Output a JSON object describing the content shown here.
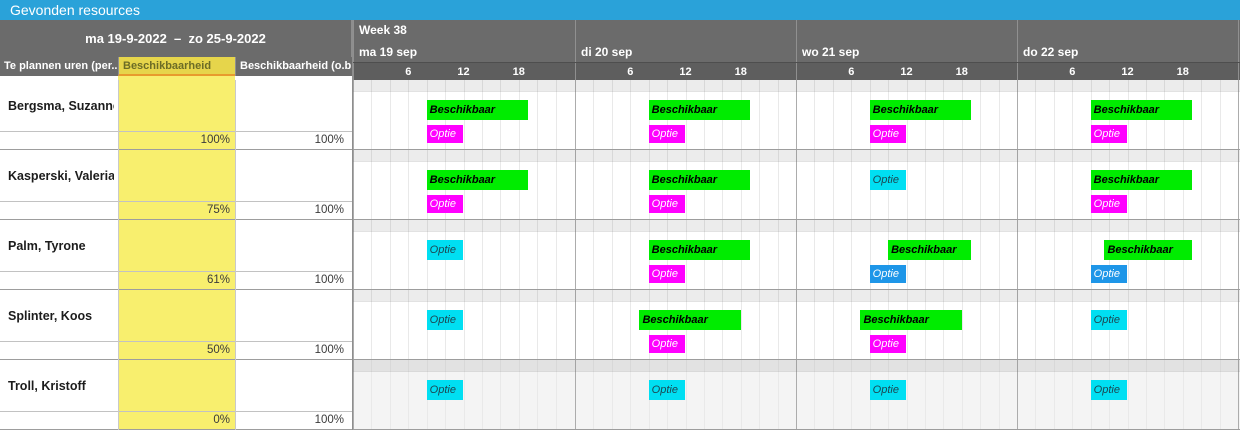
{
  "title": "Gevonden resources",
  "left_panel": {
    "date_range": "ma 19-9-2022  –  zo 25-9-2022",
    "columns": [
      {
        "label": "Te plannen uren (per...",
        "highlight": false
      },
      {
        "label": "Beschikbaarheid",
        "highlight": true,
        "sort_icon": "triangle-down"
      },
      {
        "label": "Beschikbaarheid (o.b...",
        "highlight": false
      }
    ]
  },
  "timeline": {
    "week_label": "Week 38",
    "days": [
      "ma 19 sep",
      "di 20 sep",
      "wo 21 sep",
      "do 22 sep"
    ],
    "hour_ticks": [
      6,
      12,
      18
    ]
  },
  "colors": {
    "titlebar": "#2AA2D9",
    "header_bg": "#6B6B6B",
    "highlight_column": "#F8EF6E",
    "bar_green": "#00EC00",
    "bar_magenta": "#FF00FF",
    "bar_cyan": "#00DFF2",
    "bar_blue": "#1E96E8"
  },
  "resources": [
    {
      "name": "Bergsma, Suzanne",
      "beschikbaarheid": "100%",
      "beschikbaarheid_obv": "100%",
      "row_shaded": false,
      "bars": [
        {
          "day": 0,
          "slot": "top",
          "label": "Beschikbaar",
          "color": "green",
          "from": 8,
          "to": 19
        },
        {
          "day": 0,
          "slot": "bottom",
          "label": "Optie",
          "color": "magenta",
          "from": 8,
          "to": 12
        },
        {
          "day": 1,
          "slot": "top",
          "label": "Beschikbaar",
          "color": "green",
          "from": 8,
          "to": 19
        },
        {
          "day": 1,
          "slot": "bottom",
          "label": "Optie",
          "color": "magenta",
          "from": 8,
          "to": 12
        },
        {
          "day": 2,
          "slot": "top",
          "label": "Beschikbaar",
          "color": "green",
          "from": 8,
          "to": 19
        },
        {
          "day": 2,
          "slot": "bottom",
          "label": "Optie",
          "color": "magenta",
          "from": 8,
          "to": 12
        },
        {
          "day": 3,
          "slot": "top",
          "label": "Beschikbaar",
          "color": "green",
          "from": 8,
          "to": 19
        },
        {
          "day": 3,
          "slot": "bottom",
          "label": "Optie",
          "color": "magenta",
          "from": 8,
          "to": 12
        }
      ]
    },
    {
      "name": "Kasperski, Valeria",
      "beschikbaarheid": "75%",
      "beschikbaarheid_obv": "100%",
      "row_shaded": false,
      "bars": [
        {
          "day": 0,
          "slot": "top",
          "label": "Beschikbaar",
          "color": "green",
          "from": 8,
          "to": 19
        },
        {
          "day": 0,
          "slot": "bottom",
          "label": "Optie",
          "color": "magenta",
          "from": 8,
          "to": 12
        },
        {
          "day": 1,
          "slot": "top",
          "label": "Beschikbaar",
          "color": "green",
          "from": 8,
          "to": 19
        },
        {
          "day": 1,
          "slot": "bottom",
          "label": "Optie",
          "color": "magenta",
          "from": 8,
          "to": 12
        },
        {
          "day": 2,
          "slot": "top",
          "label": "Optie",
          "color": "cyan",
          "from": 8,
          "to": 12
        },
        {
          "day": 3,
          "slot": "top",
          "label": "Beschikbaar",
          "color": "green",
          "from": 8,
          "to": 19
        },
        {
          "day": 3,
          "slot": "bottom",
          "label": "Optie",
          "color": "magenta",
          "from": 8,
          "to": 12
        }
      ]
    },
    {
      "name": "Palm, Tyrone",
      "beschikbaarheid": "61%",
      "beschikbaarheid_obv": "100%",
      "row_shaded": false,
      "bars": [
        {
          "day": 0,
          "slot": "top",
          "label": "Optie",
          "color": "cyan",
          "from": 8,
          "to": 12
        },
        {
          "day": 1,
          "slot": "top",
          "label": "Beschikbaar",
          "color": "green",
          "from": 8,
          "to": 19
        },
        {
          "day": 1,
          "slot": "bottom",
          "label": "Optie",
          "color": "magenta",
          "from": 8,
          "to": 12
        },
        {
          "day": 2,
          "slot": "top",
          "label": "Beschikbaar",
          "color": "green",
          "from": 10,
          "to": 19
        },
        {
          "day": 2,
          "slot": "bottom",
          "label": "Optie",
          "color": "blue",
          "from": 8,
          "to": 12
        },
        {
          "day": 3,
          "slot": "top",
          "label": "Beschikbaar",
          "color": "green",
          "from": 9.5,
          "to": 19
        },
        {
          "day": 3,
          "slot": "bottom",
          "label": "Optie",
          "color": "blue",
          "from": 8,
          "to": 12
        }
      ]
    },
    {
      "name": "Splinter, Koos",
      "beschikbaarheid": "50%",
      "beschikbaarheid_obv": "100%",
      "row_shaded": false,
      "bars": [
        {
          "day": 0,
          "slot": "top",
          "label": "Optie",
          "color": "cyan",
          "from": 8,
          "to": 12
        },
        {
          "day": 1,
          "slot": "top",
          "label": "Beschikbaar",
          "color": "green",
          "from": 7,
          "to": 18
        },
        {
          "day": 1,
          "slot": "bottom",
          "label": "Optie",
          "color": "magenta",
          "from": 8,
          "to": 12
        },
        {
          "day": 2,
          "slot": "top",
          "label": "Beschikbaar",
          "color": "green",
          "from": 7,
          "to": 18
        },
        {
          "day": 2,
          "slot": "bottom",
          "label": "Optie",
          "color": "magenta",
          "from": 8,
          "to": 12
        },
        {
          "day": 3,
          "slot": "top",
          "label": "Optie",
          "color": "cyan",
          "from": 8,
          "to": 12
        }
      ]
    },
    {
      "name": "Troll, Kristoff",
      "beschikbaarheid": "0%",
      "beschikbaarheid_obv": "100%",
      "row_shaded": true,
      "bars": [
        {
          "day": 0,
          "slot": "top",
          "label": "Optie",
          "color": "cyan",
          "from": 8,
          "to": 12
        },
        {
          "day": 1,
          "slot": "top",
          "label": "Optie",
          "color": "cyan",
          "from": 8,
          "to": 12
        },
        {
          "day": 2,
          "slot": "top",
          "label": "Optie",
          "color": "cyan",
          "from": 8,
          "to": 12
        },
        {
          "day": 3,
          "slot": "top",
          "label": "Optie",
          "color": "cyan",
          "from": 8,
          "to": 12
        }
      ]
    }
  ]
}
